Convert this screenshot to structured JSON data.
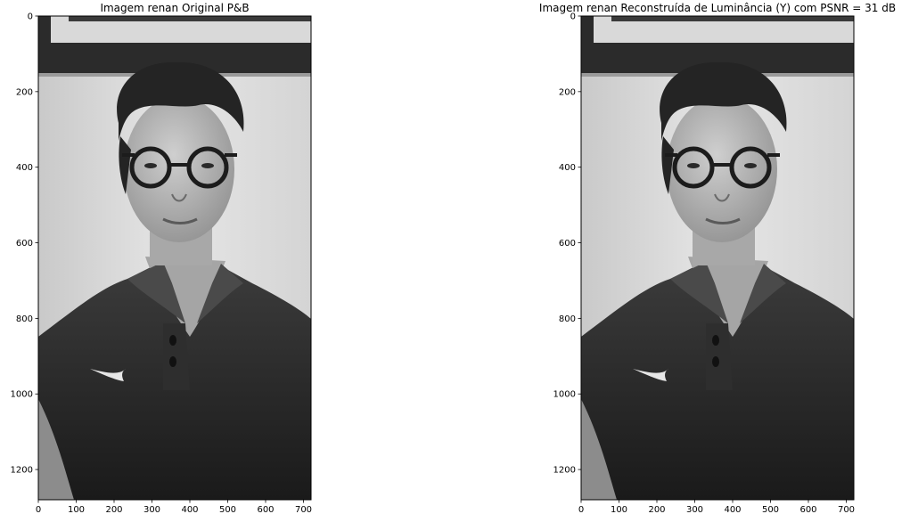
{
  "figure": {
    "colors": {
      "background": "#ffffff",
      "axes": "#000000"
    },
    "panels": [
      {
        "title": "Imagem renan Original P&B",
        "image": "grayscale portrait photo"
      },
      {
        "title": "Imagem renan Reconstruída de Luminância (Y) com PSNR = 31 dB",
        "image": "grayscale portrait photo (reconstructed)"
      }
    ]
  },
  "chart_data": [
    {
      "type": "image",
      "title": "Imagem renan Original P&B",
      "xlim": [
        0,
        720
      ],
      "ylim": [
        1280,
        0
      ],
      "x_ticks": [
        0,
        100,
        200,
        300,
        400,
        500,
        600,
        700
      ],
      "y_ticks": [
        0,
        200,
        400,
        600,
        800,
        1000,
        1200
      ],
      "colormap": "gray",
      "grid": false
    },
    {
      "type": "image",
      "title": "Imagem renan Reconstruída de Luminância (Y) com PSNR = 31 dB",
      "xlim": [
        0,
        720
      ],
      "ylim": [
        1280,
        0
      ],
      "x_ticks": [
        0,
        100,
        200,
        300,
        400,
        500,
        600,
        700
      ],
      "y_ticks": [
        0,
        200,
        400,
        600,
        800,
        1000,
        1200
      ],
      "colormap": "gray",
      "grid": false,
      "psnr_db": 31
    }
  ]
}
